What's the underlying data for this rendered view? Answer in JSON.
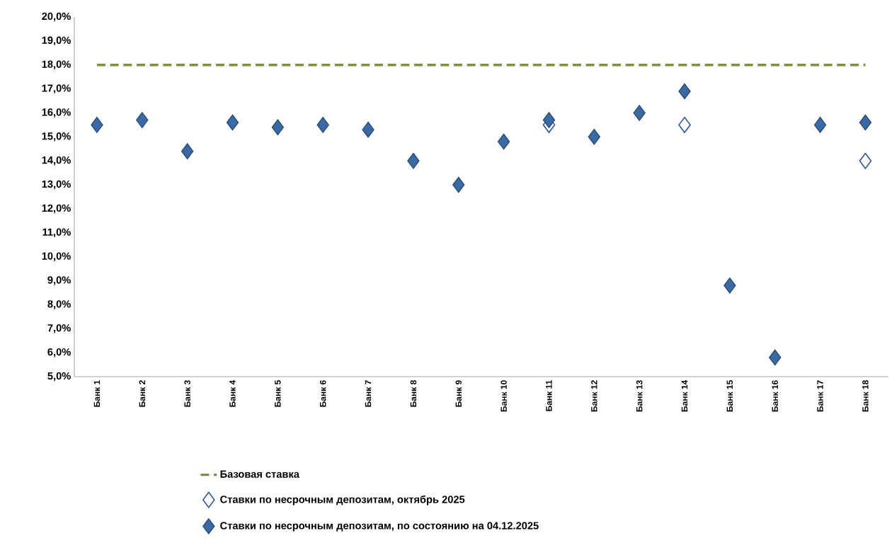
{
  "chart_data": {
    "type": "scatter",
    "categories": [
      "Банк 1",
      "Банк 2",
      "Банк 3",
      "Банк 4",
      "Банк 5",
      "Банк 6",
      "Банк 7",
      "Банк 8",
      "Банк 9",
      "Банк 10",
      "Банк 11",
      "Банк 12",
      "Банк 13",
      "Банк 14",
      "Банк 15",
      "Банк 16",
      "Банк 17",
      "Банк 18"
    ],
    "ylim": [
      5,
      20
    ],
    "yticks": [
      {
        "value": 5,
        "label": "5,0%"
      },
      {
        "value": 6,
        "label": "6,0%"
      },
      {
        "value": 7,
        "label": "7,0%"
      },
      {
        "value": 8,
        "label": "8,0%"
      },
      {
        "value": 9,
        "label": "9,0%"
      },
      {
        "value": 10,
        "label": "10,0%"
      },
      {
        "value": 11,
        "label": "11,0%"
      },
      {
        "value": 12,
        "label": "12,0%"
      },
      {
        "value": 13,
        "label": "13,0%"
      },
      {
        "value": 14,
        "label": "14,0%"
      },
      {
        "value": 15,
        "label": "15,0%"
      },
      {
        "value": 16,
        "label": "16,0%"
      },
      {
        "value": 17,
        "label": "17,0%"
      },
      {
        "value": 18,
        "label": "18,0%"
      },
      {
        "value": 19,
        "label": "19,0%"
      },
      {
        "value": 20,
        "label": "20,0%"
      }
    ],
    "legend": "bottom",
    "marker": "diamond",
    "series": [
      {
        "name": "Базовая ставка",
        "type": "line",
        "line_style": "dashed",
        "marker": "none",
        "color": "#77933c",
        "values": [
          18,
          18,
          18,
          18,
          18,
          18,
          18,
          18,
          18,
          18,
          18,
          18,
          18,
          18,
          18,
          18,
          18,
          18
        ]
      },
      {
        "name": "Ставки по несрочным депозитам, октябрь 2025",
        "type": "scatter",
        "color": "#2f5597",
        "values": [
          null,
          null,
          null,
          null,
          null,
          null,
          null,
          null,
          null,
          null,
          15.5,
          null,
          null,
          15.5,
          null,
          null,
          null,
          14.0
        ]
      },
      {
        "name": "Ставки по несрочным депозитам, по состоянию на 04.12.2025",
        "type": "scatter",
        "color": "#3a69a4",
        "values": [
          15.5,
          15.7,
          14.4,
          15.6,
          15.4,
          15.5,
          15.3,
          14.0,
          13.0,
          14.8,
          15.7,
          15.0,
          16.0,
          16.9,
          8.8,
          5.8,
          15.5,
          15.6
        ]
      }
    ]
  }
}
